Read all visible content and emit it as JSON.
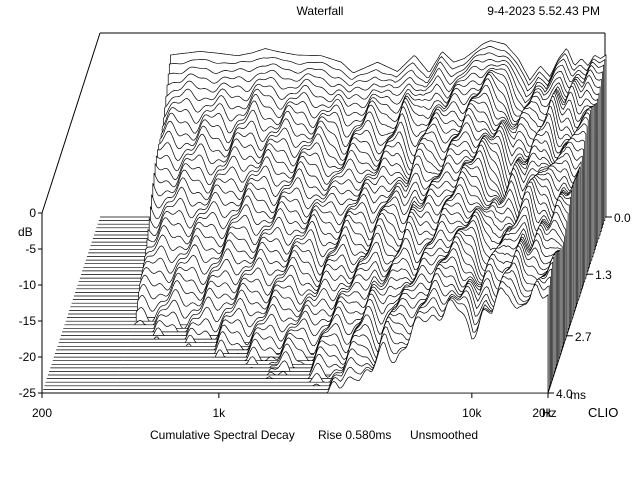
{
  "chart_data": {
    "type": "waterfall",
    "title": "Waterfall",
    "timestamp": "9-4-2023 5.52.43 PM",
    "subtitle": "Cumulative Spectral Decay",
    "rise": "Rise 0.580ms",
    "smoothing": "Unsmoothed",
    "brand": "CLIO",
    "xlabel": "Hz",
    "ylabel": "dB",
    "zlabel": "ms",
    "x_scale": "log",
    "x_range": [
      200,
      20000
    ],
    "y_range": [
      -25,
      0
    ],
    "z_range": [
      0.0,
      4.0
    ],
    "x_ticks": [
      {
        "value": 200,
        "label": "200"
      },
      {
        "value": 1000,
        "label": "1k"
      },
      {
        "value": 10000,
        "label": "10k"
      },
      {
        "value": 20000,
        "label": "20k"
      }
    ],
    "y_ticks": [
      {
        "value": 0,
        "label": "0"
      },
      {
        "value": -5,
        "label": "-5"
      },
      {
        "value": -10,
        "label": "-10"
      },
      {
        "value": -15,
        "label": "-15"
      },
      {
        "value": -20,
        "label": "-20"
      },
      {
        "value": -25,
        "label": "-25"
      }
    ],
    "z_ticks": [
      {
        "value": 0.0,
        "label": "0.0"
      },
      {
        "value": 1.3,
        "label": "1.3"
      },
      {
        "value": 2.7,
        "label": "2.7"
      },
      {
        "value": 4.0,
        "label": "4.0"
      }
    ],
    "slice_count": 50,
    "initial_response": {
      "freq": [
        380,
        420,
        500,
        600,
        700,
        800,
        900,
        1000,
        1200,
        1500,
        1800,
        2000,
        2500,
        3000,
        3500,
        4000,
        4500,
        5000,
        5500,
        6000,
        6500,
        7000,
        8000,
        9000,
        10000,
        11000,
        12000,
        13000,
        14000,
        15000,
        16000,
        17000,
        18000,
        19000,
        20000
      ],
      "db": [
        -2.5,
        -2.3,
        -2.0,
        -2.3,
        -2.6,
        -2.2,
        -1.6,
        -2.0,
        -2.5,
        -2.6,
        -3.5,
        -5.0,
        -3.5,
        -4.8,
        -2.5,
        -5.0,
        -2.0,
        -3.5,
        -3.0,
        -2.0,
        -1.0,
        -0.5,
        -1.0,
        -3.0,
        -6.0,
        -4.0,
        -5.5,
        -3.0,
        -1.5,
        -4.0,
        -3.0,
        -4.0,
        -2.5,
        -3.0,
        -2.5
      ]
    }
  }
}
